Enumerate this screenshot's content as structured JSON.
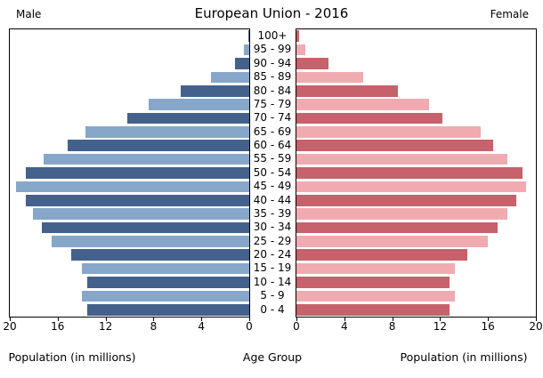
{
  "title": "European Union - 2016",
  "headers": {
    "male": "Male",
    "female": "Female"
  },
  "labels": {
    "population_left": "Population (in millions)",
    "age_group": "Age Group",
    "population_right": "Population (in millions)"
  },
  "colors": {
    "male_dark": "#44618c",
    "male_light": "#87a7ca",
    "female_dark": "#c5626b",
    "female_light": "#f0abb1",
    "axis": "#000000",
    "background": "#ffffff"
  },
  "chart_data": {
    "type": "bar",
    "subtype": "population-pyramid",
    "title": "European Union - 2016",
    "xlabel_left": "Population (in millions)",
    "xlabel_right": "Population (in millions)",
    "center_label": "Age Group",
    "xlim": [
      0,
      20
    ],
    "x_ticks": [
      0,
      4,
      8,
      12,
      16,
      20
    ],
    "grid": false,
    "age_groups": [
      "100+",
      "95 - 99",
      "90 - 94",
      "85 - 89",
      "80 - 84",
      "75 - 79",
      "70 - 74",
      "65 - 69",
      "60 - 64",
      "55 - 59",
      "50 - 54",
      "45 - 49",
      "40 - 44",
      "35 - 39",
      "30 - 34",
      "25 - 29",
      "20 - 24",
      "15 - 19",
      "10 - 14",
      "5 - 9",
      "0 - 4"
    ],
    "series": [
      {
        "name": "Male",
        "side": "left",
        "values": [
          0.1,
          0.45,
          1.2,
          3.2,
          5.7,
          8.4,
          10.2,
          13.7,
          15.2,
          17.2,
          18.7,
          19.5,
          18.7,
          18.1,
          17.3,
          16.5,
          14.9,
          14.0,
          13.5,
          14.0,
          13.5
        ]
      },
      {
        "name": "Female",
        "side": "right",
        "values": [
          0.2,
          0.75,
          2.7,
          5.6,
          8.5,
          11.1,
          12.2,
          15.4,
          16.4,
          17.6,
          18.9,
          19.2,
          18.4,
          17.6,
          16.8,
          16.0,
          14.3,
          13.2,
          12.8,
          13.2,
          12.8
        ]
      }
    ]
  }
}
